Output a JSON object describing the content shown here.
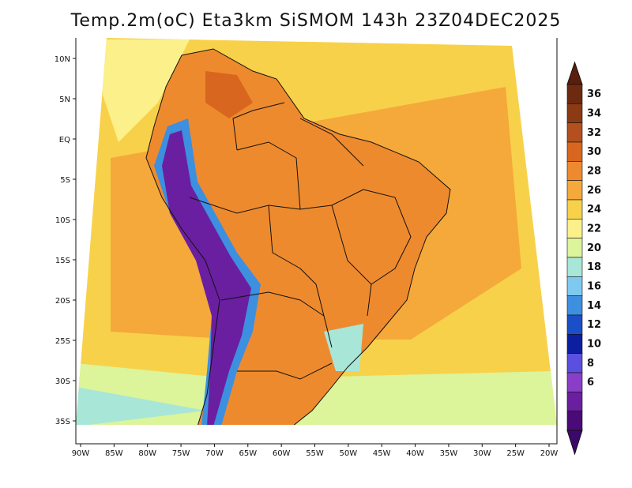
{
  "title": "Temp.2m(oC) Eta3km SiSMOM 143h 23Z04DEC2025",
  "lon_labels": [
    "90W",
    "85W",
    "80W",
    "75W",
    "70W",
    "65W",
    "60W",
    "55W",
    "50W",
    "45W",
    "40W",
    "35W",
    "30W",
    "25W",
    "20W"
  ],
  "lat_labels": [
    "10N",
    "5N",
    "EQ",
    "5S",
    "10S",
    "15S",
    "20S",
    "25S",
    "30S",
    "35S"
  ],
  "colorbar": {
    "labels": [
      "36",
      "34",
      "32",
      "30",
      "28",
      "26",
      "24",
      "22",
      "20",
      "18",
      "16",
      "14",
      "12",
      "10",
      "8",
      "6"
    ],
    "colors": [
      "#6e2a10",
      "#8b3a14",
      "#b4501e",
      "#d9661e",
      "#ee8a2e",
      "#f5a93a",
      "#f8d14a",
      "#fbf08a",
      "#dcf49a",
      "#a8e6d8",
      "#7ec9f0",
      "#3d8fe0",
      "#1a4fc8",
      "#0b1fa0",
      "#5b4fe0",
      "#8a3ec8",
      "#6a1fa0",
      "#4a0a78"
    ],
    "arrow_top": "#5a1e0c",
    "arrow_bottom": "#3a0a6a"
  },
  "colors": {
    "ocean_warm": "#f5a93a",
    "ocean_mid": "#f8d14a",
    "ocean_cool": "#fbf08a",
    "ocean_south": "#dcf49a",
    "ocean_cold": "#a8e6d8",
    "land": "#ee8a2e",
    "land_hot": "#d9661e",
    "andes": "#6a1fa0",
    "andes_edge": "#3d8fe0",
    "border": "#111111"
  }
}
